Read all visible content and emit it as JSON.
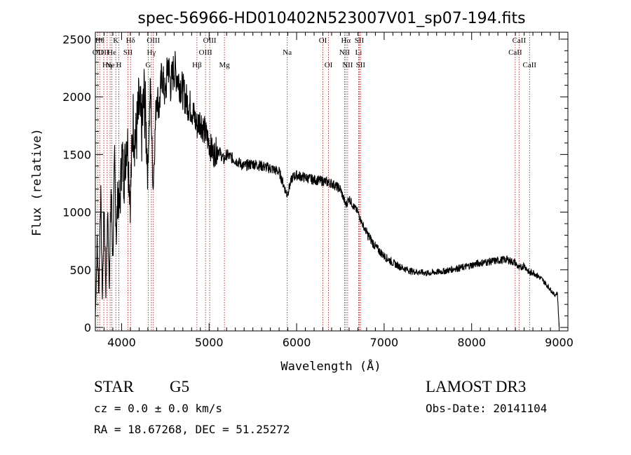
{
  "chart_data": {
    "type": "line",
    "title": "spec-56966-HD010402N523007V01_sp07-194.fits",
    "xlabel": "Wavelength (Å)",
    "ylabel": "Flux (relative)",
    "xlim": [
      3700,
      9100
    ],
    "ylim": [
      -30,
      2560
    ],
    "x_ticks": [
      4000,
      5000,
      6000,
      7000,
      8000,
      9000
    ],
    "y_ticks": [
      0,
      500,
      1000,
      1500,
      2000,
      2500
    ],
    "grid": false,
    "legend": "none",
    "series": [
      {
        "color": "#000000",
        "x": [
          3700,
          3720,
          3740,
          3760,
          3780,
          3800,
          3820,
          3840,
          3860,
          3880,
          3900,
          3920,
          3940,
          3960,
          3980,
          4000,
          4030,
          4060,
          4100,
          4130,
          4160,
          4200,
          4230,
          4260,
          4300,
          4330,
          4360,
          4400,
          4430,
          4460,
          4500,
          4530,
          4560,
          4600,
          4650,
          4700,
          4750,
          4800,
          4860,
          4900,
          4950,
          5000,
          5050,
          5100,
          5170,
          5200,
          5300,
          5400,
          5500,
          5600,
          5700,
          5800,
          5890,
          5950,
          6000,
          6100,
          6200,
          6300,
          6400,
          6500,
          6563,
          6600,
          6650,
          6700,
          6750,
          6800,
          6900,
          7000,
          7100,
          7200,
          7300,
          7400,
          7500,
          7600,
          7700,
          7800,
          7900,
          8000,
          8100,
          8200,
          8300,
          8400,
          8500,
          8542,
          8600,
          8662,
          8700,
          8800,
          8900,
          8950,
          8980,
          9000
        ],
        "y": [
          100,
          700,
          300,
          1200,
          250,
          1100,
          300,
          1000,
          400,
          1200,
          600,
          1400,
          800,
          1200,
          1000,
          1500,
          1300,
          1700,
          1100,
          1800,
          1600,
          1900,
          1700,
          2000,
          1400,
          2100,
          1200,
          2050,
          1900,
          2200,
          2000,
          2300,
          2100,
          2250,
          2150,
          2050,
          1950,
          1900,
          1750,
          1800,
          1700,
          1600,
          1500,
          1550,
          1450,
          1500,
          1450,
          1400,
          1420,
          1400,
          1380,
          1350,
          1150,
          1300,
          1320,
          1300,
          1280,
          1270,
          1250,
          1200,
          1060,
          1120,
          1050,
          1000,
          900,
          820,
          700,
          620,
          560,
          520,
          490,
          480,
          470,
          480,
          490,
          510,
          520,
          540,
          560,
          570,
          580,
          590,
          560,
          510,
          540,
          470,
          480,
          420,
          330,
          280,
          300,
          0
        ]
      }
    ],
    "lines": [
      {
        "wl": 3727,
        "label": "OII",
        "row": 1
      },
      {
        "wl": 3750,
        "label": "Hθ",
        "row": 0
      },
      {
        "wl": 3797,
        "label": "OII",
        "row": 1
      },
      {
        "wl": 3835,
        "label": "Hη",
        "row": 2
      },
      {
        "wl": 3869,
        "label": "Ne",
        "row": 2
      },
      {
        "wl": 3889,
        "label": "He",
        "row": 1
      },
      {
        "wl": 3934,
        "label": "K",
        "row": 0
      },
      {
        "wl": 3968,
        "label": "H",
        "row": 2
      },
      {
        "wl": 4072,
        "label": "SII",
        "row": 1
      },
      {
        "wl": 4102,
        "label": "Hδ",
        "row": 0
      },
      {
        "wl": 4304,
        "label": "G",
        "row": 2
      },
      {
        "wl": 4340,
        "label": "Hγ",
        "row": 1
      },
      {
        "wl": 4363,
        "label": "OIII",
        "row": 0
      },
      {
        "wl": 4861,
        "label": "Hβ",
        "row": 2
      },
      {
        "wl": 4959,
        "label": "OIII",
        "row": 1
      },
      {
        "wl": 5007,
        "label": "OIII",
        "row": 0
      },
      {
        "wl": 5175,
        "label": "Mg",
        "row": 2
      },
      {
        "wl": 5893,
        "label": "Na",
        "row": 1
      },
      {
        "wl": 6300,
        "label": "OI",
        "row": 0
      },
      {
        "wl": 6364,
        "label": "OI",
        "row": 2
      },
      {
        "wl": 6548,
        "label": "NII",
        "row": 1
      },
      {
        "wl": 6563,
        "label": "Hα",
        "row": 0
      },
      {
        "wl": 6583,
        "label": "NII",
        "row": 2
      },
      {
        "wl": 6708,
        "label": "Li",
        "row": 1
      },
      {
        "wl": 6716,
        "label": "SII",
        "row": 0
      },
      {
        "wl": 6731,
        "label": "SII",
        "row": 2
      },
      {
        "wl": 8498,
        "label": "CaII",
        "row": 1
      },
      {
        "wl": 8542,
        "label": "CaII",
        "row": 0
      },
      {
        "wl": 8662,
        "label": "CaII",
        "row": 2
      }
    ]
  },
  "info": {
    "object_class": "STAR",
    "subclass": "G5",
    "redshift": "cz =  0.0 ± 0.0 km/s",
    "coords": "RA =   18.67268, DEC =   51.25272",
    "survey": "LAMOST DR3",
    "obs_date": "Obs-Date: 20141104"
  }
}
